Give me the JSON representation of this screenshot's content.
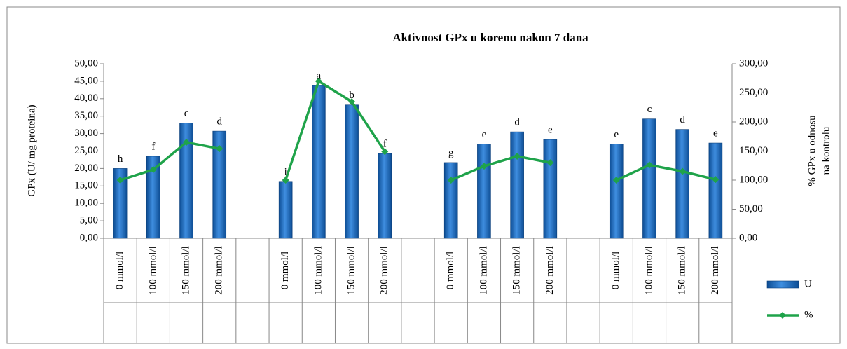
{
  "chart_data": {
    "type": "bar-line",
    "title": "Aktivnost GPx u korenu nakon 7 dana",
    "y_label": "GPx (U/ mg  proteina)",
    "y2_label": [
      "% GPx u odnosu",
      "na kontrolu"
    ],
    "categories": [
      "0 mmol/l",
      "100 mmol/l",
      "150 mmol/l",
      "200 mmol/l",
      null,
      "0 mmol/l",
      "100 mmol/l",
      "150 mmol/l",
      "200 mmol/l",
      null,
      "0 mmol/l",
      "100 mmol/l",
      "150 mmol/l",
      "200 mmol/l",
      null,
      "0 mmol/l",
      "100 mmol/l",
      "150 mmol/l",
      "200 mmol/l"
    ],
    "annotations": [
      "h",
      "f",
      "c",
      "d",
      null,
      "i",
      "a",
      "b",
      "f",
      null,
      "g",
      "e",
      "d",
      "e",
      null,
      "e",
      "c",
      "d",
      "e"
    ],
    "series": [
      {
        "name": "U",
        "type": "bar",
        "color": "#1f6fc0",
        "values": [
          20,
          23.5,
          33,
          30.7,
          null,
          16.3,
          43.8,
          38.2,
          24.3,
          null,
          21.7,
          27,
          30.5,
          28.3,
          null,
          27,
          34.2,
          31.2,
          27.3
        ]
      },
      {
        "name": "%",
        "type": "line",
        "axis": "y2",
        "color": "#1fa34a",
        "values": [
          100,
          118,
          165,
          154,
          null,
          100,
          270,
          235,
          149,
          null,
          100,
          124,
          141,
          130,
          null,
          100,
          126,
          115,
          101
        ]
      }
    ],
    "ylim": [
      0,
      50
    ],
    "yticks": [
      {
        "value": 0,
        "label": "0,00"
      },
      {
        "value": 5,
        "label": "5,00"
      },
      {
        "value": 10,
        "label": "10,00"
      },
      {
        "value": 15,
        "label": "15,00"
      },
      {
        "value": 20,
        "label": "20,00"
      },
      {
        "value": 25,
        "label": "25,00"
      },
      {
        "value": 30,
        "label": "30,00"
      },
      {
        "value": 35,
        "label": "35,00"
      },
      {
        "value": 40,
        "label": "40,00"
      },
      {
        "value": 45,
        "label": "45,00"
      },
      {
        "value": 50,
        "label": "50,00"
      }
    ],
    "y2lim": [
      0,
      300
    ],
    "y2ticks": [
      {
        "value": 0,
        "label": "0,00"
      },
      {
        "value": 50,
        "label": "50,00"
      },
      {
        "value": 100,
        "label": "100,00"
      },
      {
        "value": 150,
        "label": "150,00"
      },
      {
        "value": 200,
        "label": "200,00"
      },
      {
        "value": 250,
        "label": "250,00"
      },
      {
        "value": 300,
        "label": "300,00"
      }
    ],
    "legend": "right"
  }
}
